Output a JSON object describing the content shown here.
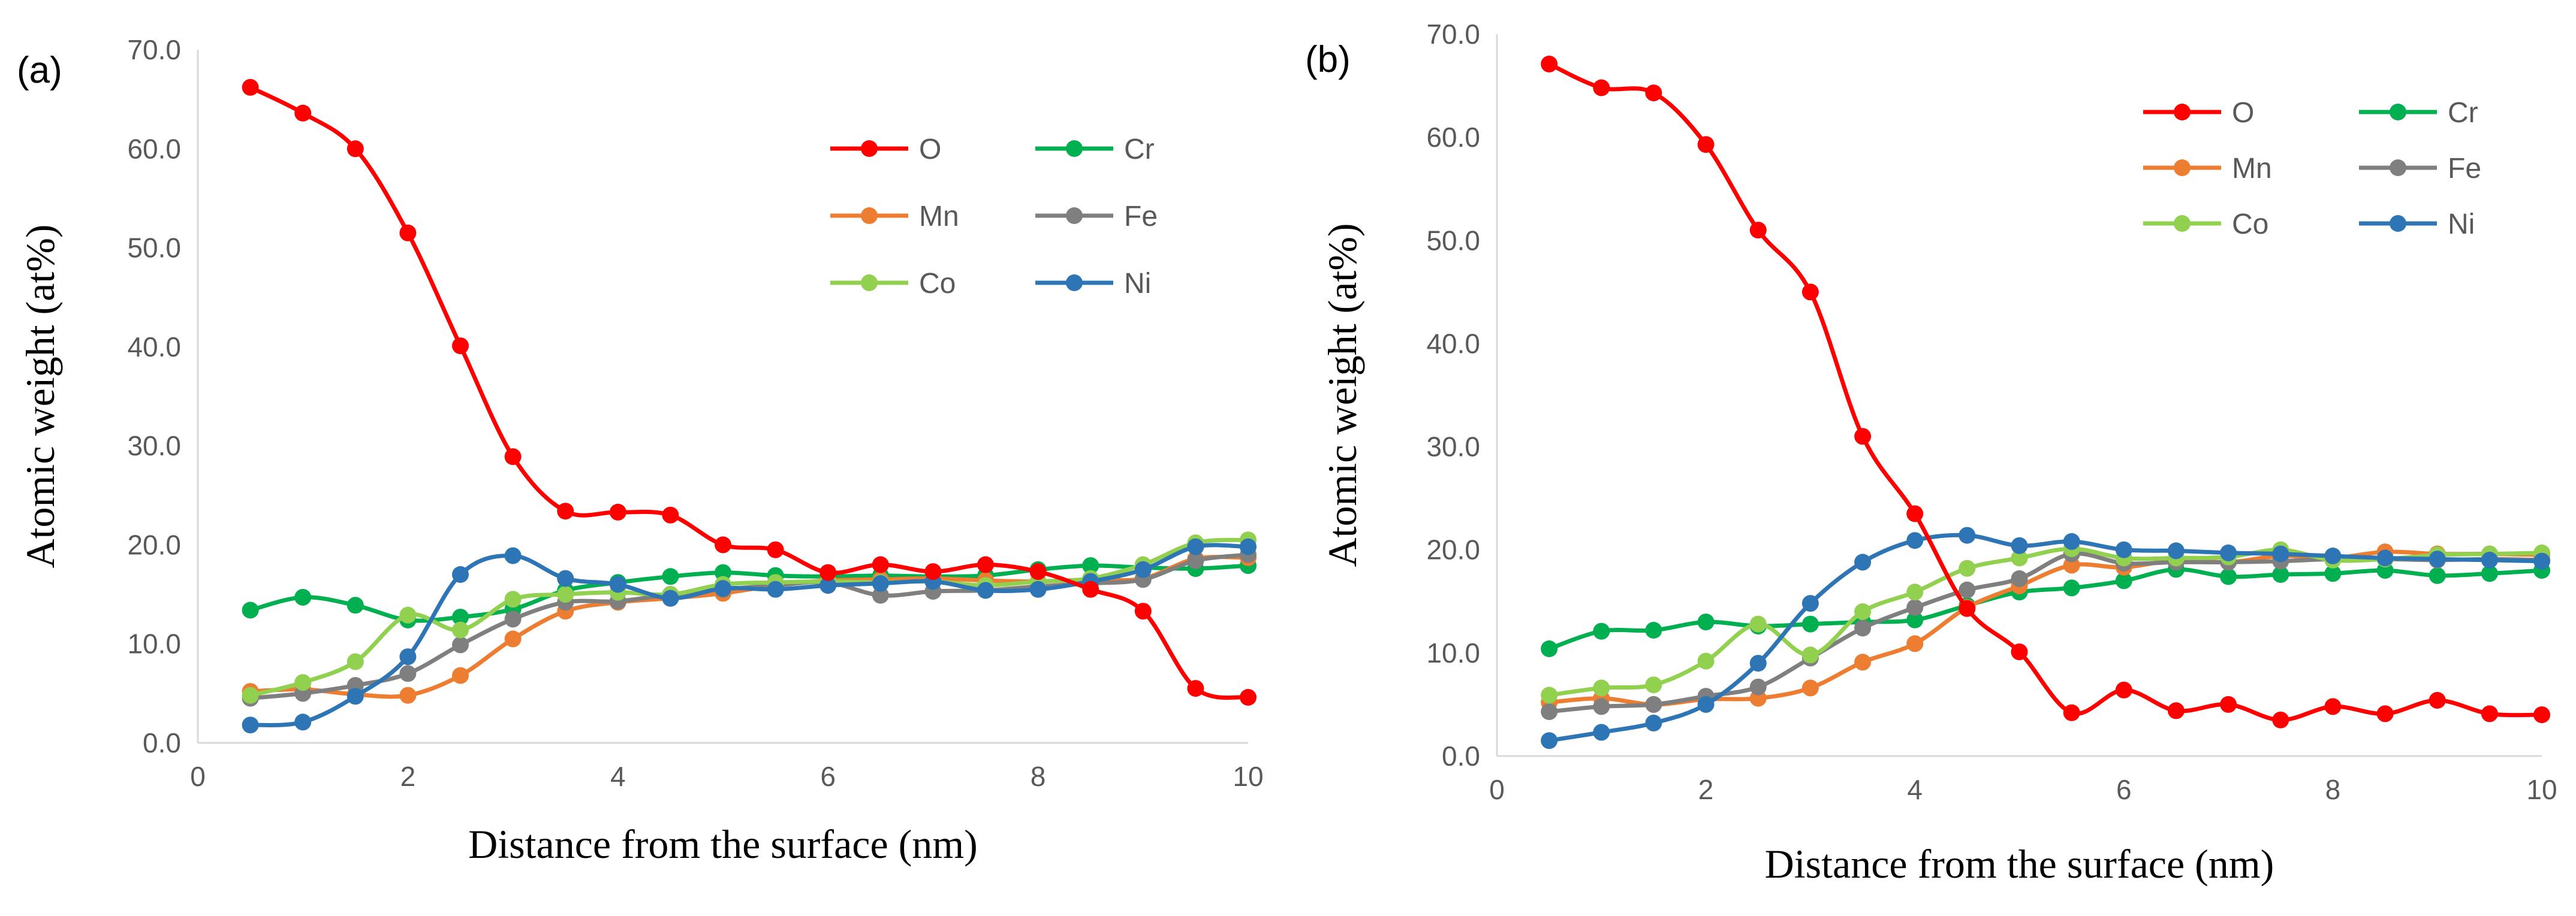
{
  "chart_data": [
    {
      "type": "line",
      "panel_label": "(a)",
      "title": "",
      "xlabel": "Distance from the surface (nm)",
      "ylabel": "Atomic weight (at%)",
      "xlim": [
        0,
        10
      ],
      "ylim": [
        0,
        70
      ],
      "x_ticks": [
        0,
        2,
        4,
        6,
        8,
        10
      ],
      "x_tick_labels": [
        "0",
        "2",
        "4",
        "6",
        "8",
        "10"
      ],
      "y_ticks": [
        0,
        10,
        20,
        30,
        40,
        50,
        60,
        70
      ],
      "y_tick_labels": [
        "0.0",
        "10.0",
        "20.0",
        "30.0",
        "40.0",
        "50.0",
        "60.0",
        "70.0"
      ],
      "grid": false,
      "legend_position": "top-right",
      "x": [
        0.5,
        1.0,
        1.5,
        2.0,
        2.5,
        3.0,
        3.5,
        4.0,
        4.5,
        5.0,
        5.5,
        6.0,
        6.5,
        7.0,
        7.5,
        8.0,
        8.5,
        9.0,
        9.5,
        10.0
      ],
      "series": [
        {
          "name": "O",
          "color": "#ff0000",
          "values": [
            66.2,
            63.6,
            60.0,
            51.5,
            40.1,
            28.9,
            23.4,
            23.3,
            23.0,
            20.0,
            19.5,
            17.2,
            18.0,
            17.3,
            18.0,
            17.3,
            15.5,
            13.3,
            5.5,
            4.6
          ]
        },
        {
          "name": "Cr",
          "color": "#00b050",
          "values": [
            13.4,
            14.7,
            13.9,
            12.4,
            12.7,
            13.5,
            15.4,
            16.2,
            16.8,
            17.2,
            16.9,
            16.8,
            16.9,
            16.8,
            16.9,
            17.5,
            17.9,
            17.7,
            17.6,
            17.9
          ]
        },
        {
          "name": "Mn",
          "color": "#ed7d31",
          "values": [
            5.2,
            5.4,
            4.9,
            4.8,
            6.8,
            10.5,
            13.3,
            14.2,
            14.6,
            15.1,
            15.9,
            16.4,
            16.5,
            16.6,
            16.4,
            16.3,
            16.5,
            16.6,
            18.6,
            18.7
          ]
        },
        {
          "name": "Fe",
          "color": "#7f7f7f",
          "values": [
            4.5,
            5.0,
            5.8,
            7.0,
            9.9,
            12.5,
            14.2,
            14.3,
            15.0,
            15.5,
            15.9,
            16.2,
            14.9,
            15.3,
            15.4,
            15.8,
            16.1,
            16.5,
            18.4,
            19.0
          ]
        },
        {
          "name": "Co",
          "color": "#92d050",
          "values": [
            4.8,
            6.1,
            8.2,
            12.9,
            11.4,
            14.5,
            15.0,
            15.2,
            15.0,
            16.0,
            16.2,
            16.3,
            16.2,
            16.3,
            15.9,
            16.3,
            16.6,
            18.0,
            20.2,
            20.5
          ]
        },
        {
          "name": "Ni",
          "color": "#2e75b6",
          "values": [
            1.8,
            2.1,
            4.7,
            8.7,
            17.0,
            18.9,
            16.6,
            16.0,
            14.6,
            15.6,
            15.5,
            15.9,
            16.1,
            16.3,
            15.4,
            15.5,
            16.3,
            17.5,
            19.8,
            19.8
          ]
        }
      ]
    },
    {
      "type": "line",
      "panel_label": "(b)",
      "title": "",
      "xlabel": "Distance from the surface (nm)",
      "ylabel": "Atomic weight (at%)",
      "xlim": [
        0,
        10
      ],
      "ylim": [
        0,
        70
      ],
      "x_ticks": [
        0,
        2,
        4,
        6,
        8,
        10
      ],
      "x_tick_labels": [
        "0",
        "2",
        "4",
        "6",
        "8",
        "10"
      ],
      "y_ticks": [
        0,
        10,
        20,
        30,
        40,
        50,
        60,
        70
      ],
      "y_tick_labels": [
        "0.0",
        "10.0",
        "20.0",
        "30.0",
        "40.0",
        "50.0",
        "60.0",
        "70.0"
      ],
      "grid": false,
      "legend_position": "top-right",
      "x": [
        0.5,
        1.0,
        1.5,
        2.0,
        2.5,
        3.0,
        3.5,
        4.0,
        4.5,
        5.0,
        5.5,
        6.0,
        6.5,
        7.0,
        7.5,
        8.0,
        8.5,
        9.0,
        9.5,
        10.0
      ],
      "series": [
        {
          "name": "O",
          "color": "#ff0000",
          "values": [
            67.1,
            64.8,
            64.3,
            59.3,
            51.0,
            45.0,
            31.0,
            23.5,
            14.3,
            10.1,
            4.2,
            6.4,
            4.4,
            5.0,
            3.5,
            4.8,
            4.1,
            5.4,
            4.1,
            4.0
          ]
        },
        {
          "name": "Cr",
          "color": "#00b050",
          "values": [
            10.4,
            12.1,
            12.2,
            13.0,
            12.6,
            12.8,
            13.0,
            13.2,
            14.6,
            15.9,
            16.3,
            17.0,
            18.1,
            17.4,
            17.6,
            17.7,
            18.0,
            17.5,
            17.7,
            18.0
          ]
        },
        {
          "name": "Mn",
          "color": "#ed7d31",
          "values": [
            5.2,
            5.6,
            5.0,
            5.5,
            5.6,
            6.6,
            9.1,
            10.9,
            14.4,
            16.5,
            18.5,
            18.3,
            19.0,
            18.8,
            19.4,
            19.2,
            19.8,
            19.6,
            19.6,
            19.5
          ]
        },
        {
          "name": "Fe",
          "color": "#7f7f7f",
          "values": [
            4.3,
            4.8,
            5.0,
            5.8,
            6.7,
            9.5,
            12.4,
            14.4,
            16.1,
            17.2,
            19.6,
            18.7,
            18.8,
            18.8,
            18.9,
            19.1,
            19.1,
            19.0,
            19.1,
            19.0
          ]
        },
        {
          "name": "Co",
          "color": "#92d050",
          "values": [
            5.9,
            6.6,
            6.9,
            9.2,
            12.8,
            9.8,
            14.0,
            15.9,
            18.2,
            19.2,
            20.1,
            19.2,
            19.2,
            19.3,
            20.0,
            19.0,
            19.1,
            19.5,
            19.6,
            19.7
          ]
        },
        {
          "name": "Ni",
          "color": "#2e75b6",
          "values": [
            1.5,
            2.3,
            3.2,
            5.0,
            9.0,
            14.8,
            18.8,
            20.9,
            21.4,
            20.4,
            20.8,
            20.0,
            19.9,
            19.7,
            19.6,
            19.4,
            19.2,
            19.1,
            19.0,
            18.9
          ]
        }
      ]
    }
  ]
}
